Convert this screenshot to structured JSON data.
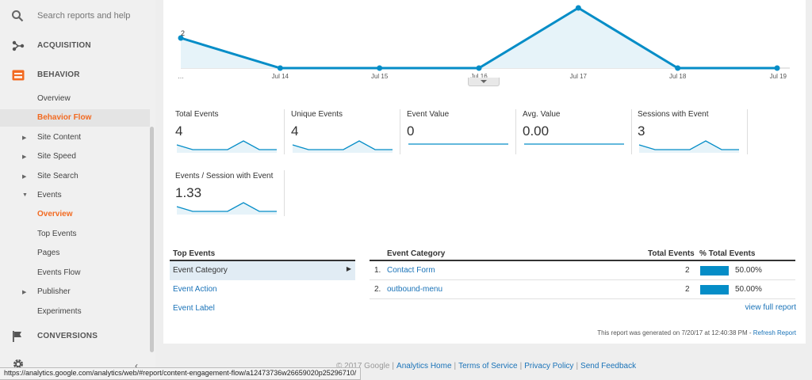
{
  "sidebar": {
    "search_placeholder": "Search reports and help",
    "sections": {
      "acquisition": "ACQUISITION",
      "behavior": "BEHAVIOR",
      "conversions": "CONVERSIONS"
    },
    "items": {
      "overview": "Overview",
      "behavior_flow": "Behavior Flow",
      "site_content": "Site Content",
      "site_speed": "Site Speed",
      "site_search": "Site Search",
      "events": "Events",
      "events_overview": "Overview",
      "top_events": "Top Events",
      "pages": "Pages",
      "events_flow": "Events Flow",
      "publisher": "Publisher",
      "experiments": "Experiments"
    }
  },
  "chart_data": {
    "type": "area",
    "x": [
      "…",
      "Jul 14",
      "Jul 15",
      "Jul 16",
      "Jul 17",
      "Jul 18",
      "Jul 19"
    ],
    "values": [
      1,
      0,
      0,
      0,
      2,
      0,
      0
    ],
    "y_tick_label": "2",
    "ylim": [
      0,
      2
    ],
    "colors": {
      "line": "#058dc7",
      "fill": "#e6f3f9"
    }
  },
  "metrics": [
    {
      "name": "Total Events",
      "value": "4"
    },
    {
      "name": "Unique Events",
      "value": "4"
    },
    {
      "name": "Event Value",
      "value": "0"
    },
    {
      "name": "Avg. Value",
      "value": "0.00"
    },
    {
      "name": "Sessions with Event",
      "value": "3"
    },
    {
      "name": "Events / Session with Event",
      "value": "1.33"
    }
  ],
  "top_events": {
    "title": "Top Events",
    "items": [
      "Event Category",
      "Event Action",
      "Event Label"
    ]
  },
  "table": {
    "headers": {
      "category": "Event Category",
      "total": "Total Events",
      "pct": "% Total Events"
    },
    "rows": [
      {
        "num": "1.",
        "category": "Contact Form",
        "total": "2",
        "pct": "50.00%",
        "share": 0.5
      },
      {
        "num": "2.",
        "category": "outbound-menu",
        "total": "2",
        "pct": "50.00%",
        "share": 0.5
      }
    ],
    "view_full": "view full report"
  },
  "report": {
    "generated": "This report was generated on 7/20/17 at 12:40:38 PM - ",
    "refresh": "Refresh Report"
  },
  "footer": {
    "copyright": "© 2017 Google",
    "links": [
      "Analytics Home",
      "Terms of Service",
      "Privacy Policy",
      "Send Feedback"
    ]
  },
  "statusbar": {
    "url": "https://analytics.google.com/analytics/web/#report/content-engagement-flow/a12473736w26659020p25296710/"
  }
}
